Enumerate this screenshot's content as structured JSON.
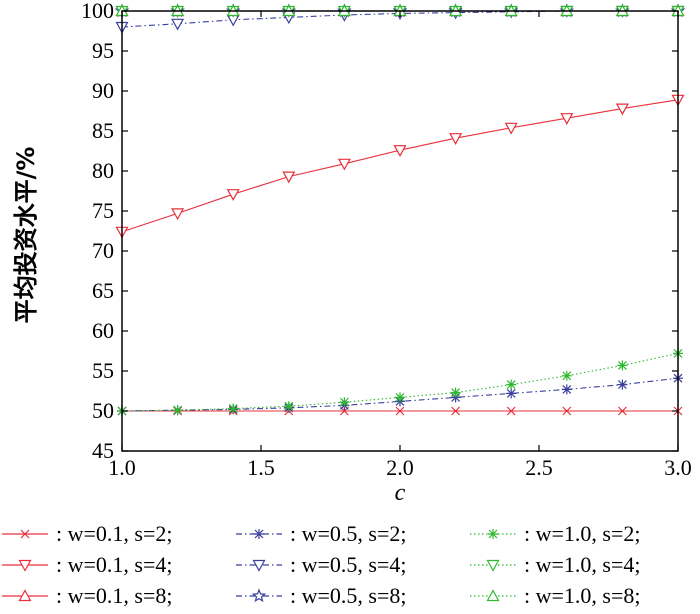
{
  "chart_data": {
    "type": "line",
    "xlabel": "c",
    "ylabel": "平均投资水平/%",
    "xlim": [
      1.0,
      3.0
    ],
    "ylim": [
      45,
      100
    ],
    "x_ticks": [
      "1.0",
      "1.5",
      "2.0",
      "2.5",
      "3.0"
    ],
    "y_ticks": [
      "45",
      "50",
      "55",
      "60",
      "65",
      "70",
      "75",
      "80",
      "85",
      "90",
      "95",
      "100"
    ],
    "x": [
      1.0,
      1.2,
      1.4,
      1.6,
      1.8,
      2.0,
      2.2,
      2.4,
      2.6,
      2.8,
      3.0
    ],
    "legend_placement": "bottom",
    "series": [
      {
        "name": ": w=0.1, s=2;",
        "color": "#e8303a",
        "dash": "solid",
        "marker": "x",
        "values": [
          50,
          50,
          50,
          50,
          50,
          50,
          50,
          50,
          50,
          50,
          50
        ]
      },
      {
        "name": ": w=0.1, s=4;",
        "color": "#e8303a",
        "dash": "solid",
        "marker": "triangle-down",
        "values": [
          72.4,
          74.7,
          77.1,
          79.3,
          80.9,
          82.6,
          84.1,
          85.4,
          86.6,
          87.8,
          88.9
        ]
      },
      {
        "name": ": w=0.1, s=8;",
        "color": "#e8303a",
        "dash": "solid",
        "marker": "triangle-up",
        "values": [
          100,
          100,
          100,
          100,
          100,
          100,
          100,
          100,
          100,
          100,
          100
        ]
      },
      {
        "name": ": w=0.5, s=2;",
        "color": "#3a3f9e",
        "dash": "dashdot",
        "marker": "asterisk",
        "values": [
          50,
          50.1,
          50.2,
          50.4,
          50.7,
          51.2,
          51.7,
          52.2,
          52.7,
          53.3,
          54.1
        ]
      },
      {
        "name": ": w=0.5, s=4;",
        "color": "#3a3f9e",
        "dash": "dashdot",
        "marker": "triangle-down",
        "values": [
          98,
          98.4,
          98.9,
          99.2,
          99.5,
          99.7,
          99.8,
          99.9,
          100,
          100,
          100
        ]
      },
      {
        "name": ": w=0.5, s=8;",
        "color": "#3a3f9e",
        "dash": "dashdot",
        "marker": "star",
        "values": [
          100,
          100,
          100,
          100,
          100,
          100,
          100,
          100,
          100,
          100,
          100
        ]
      },
      {
        "name": ": w=1.0, s=2;",
        "color": "#2fb82f",
        "dash": "dotted",
        "marker": "asterisk",
        "values": [
          50,
          50.1,
          50.3,
          50.6,
          51.1,
          51.7,
          52.3,
          53.3,
          54.4,
          55.7,
          57.2
        ]
      },
      {
        "name": ": w=1.0, s=4;",
        "color": "#2fb82f",
        "dash": "dotted",
        "marker": "triangle-down",
        "values": [
          100,
          100,
          100,
          100,
          100,
          100,
          100,
          100,
          100,
          100,
          100
        ]
      },
      {
        "name": ": w=1.0, s=8;",
        "color": "#2fb82f",
        "dash": "dotted",
        "marker": "triangle-up",
        "values": [
          100,
          100,
          100,
          100,
          100,
          100,
          100,
          100,
          100,
          100,
          100
        ]
      }
    ]
  }
}
